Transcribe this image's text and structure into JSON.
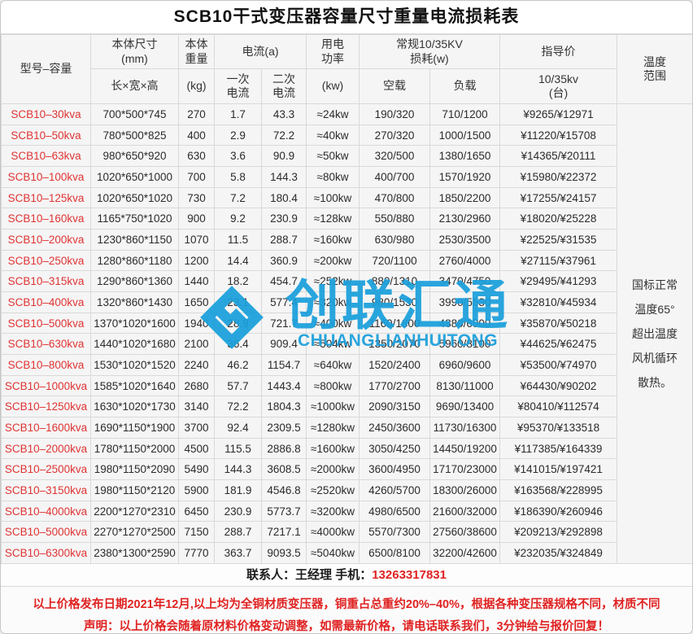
{
  "title": "SCB10干式变压器容量尺寸重量电流损耗表",
  "colors": {
    "model_red": "#e03434",
    "footer_red": "#e02222",
    "watermark_blue": "#1a9fdc",
    "cell_bg": "#f5f5f5",
    "grid_line": "#d9d9d9"
  },
  "watermark": {
    "icon": "interlocked-diamond-logo-icon",
    "cn": "创联汇通",
    "en": "CHUANGLIANHUITONG"
  },
  "table": {
    "header": {
      "model": "型号–容量",
      "dims": "本体尺寸\n(mm)",
      "dims_sub": "长×宽×高",
      "weight": "本体\n重量",
      "weight_sub": "(kg)",
      "current": "电流(a)",
      "current_primary": "一次\n电流",
      "current_secondary": "二次\n电流",
      "power": "用电\n功率",
      "power_sub": "(kw)",
      "loss": "常规10/35KV\n损耗(w)",
      "loss_noload": "空载",
      "loss_load": "负载",
      "price": "指导价",
      "price_sub": "10/35kv\n(台)",
      "temp": "温度\n范围"
    },
    "temperature_note": "国标正常\n温度65°\n超出温度\n风机循环\n散热。",
    "rows": [
      {
        "model": "SCB10–30kva",
        "dims": "700*500*745",
        "weight": "270",
        "i1": "1.7",
        "i2": "43.3",
        "power": "≈24kw",
        "noload": "190/320",
        "load": "710/1200",
        "price": "¥9265/¥12971"
      },
      {
        "model": "SCB10–50kva",
        "dims": "780*500*825",
        "weight": "400",
        "i1": "2.9",
        "i2": "72.2",
        "power": "≈40kw",
        "noload": "270/320",
        "load": "1000/1500",
        "price": "¥11220/¥15708"
      },
      {
        "model": "SCB10–63kva",
        "dims": "980*650*920",
        "weight": "630",
        "i1": "3.6",
        "i2": "90.9",
        "power": "≈50kw",
        "noload": "320/500",
        "load": "1380/1650",
        "price": "¥14365/¥20111"
      },
      {
        "model": "SCB10–100kva",
        "dims": "1020*650*1000",
        "weight": "700",
        "i1": "5.8",
        "i2": "144.3",
        "power": "≈80kw",
        "noload": "400/700",
        "load": "1570/1920",
        "price": "¥15980/¥22372"
      },
      {
        "model": "SCB10–125kva",
        "dims": "1020*650*1020",
        "weight": "730",
        "i1": "7.2",
        "i2": "180.4",
        "power": "≈100kw",
        "noload": "470/800",
        "load": "1850/2200",
        "price": "¥17255/¥24157"
      },
      {
        "model": "SCB10–160kva",
        "dims": "1165*750*1020",
        "weight": "900",
        "i1": "9.2",
        "i2": "230.9",
        "power": "≈128kw",
        "noload": "550/880",
        "load": "2130/2960",
        "price": "¥18020/¥25228"
      },
      {
        "model": "SCB10–200kva",
        "dims": "1230*860*1150",
        "weight": "1070",
        "i1": "11.5",
        "i2": "288.7",
        "power": "≈160kw",
        "noload": "630/980",
        "load": "2530/3500",
        "price": "¥22525/¥31535"
      },
      {
        "model": "SCB10–250kva",
        "dims": "1280*860*1180",
        "weight": "1200",
        "i1": "14.4",
        "i2": "360.9",
        "power": "≈200kw",
        "noload": "720/1100",
        "load": "2760/4000",
        "price": "¥27115/¥37961"
      },
      {
        "model": "SCB10–315kva",
        "dims": "1290*860*1360",
        "weight": "1440",
        "i1": "18.2",
        "i2": "454.7",
        "power": "≈252kw",
        "noload": "880/1310",
        "load": "3470/4750",
        "price": "¥29495/¥41293"
      },
      {
        "model": "SCB10–400kva",
        "dims": "1320*860*1430",
        "weight": "1650",
        "i1": "23.1",
        "i2": "577.4",
        "power": "≈320kw",
        "noload": "980/1530",
        "load": "3990/5530",
        "price": "¥32810/¥45934"
      },
      {
        "model": "SCB10–500kva",
        "dims": "1370*1020*1600",
        "weight": "1940",
        "i1": "28.9",
        "i2": "721.7",
        "power": "≈400kw",
        "noload": "1160/1800",
        "load": "4880/6900",
        "price": "¥35870/¥50218"
      },
      {
        "model": "SCB10–630kva",
        "dims": "1440*1020*1680",
        "weight": "2100",
        "i1": "36.4",
        "i2": "909.4",
        "power": "≈504kw",
        "noload": "1350/2070",
        "load": "5960/8100",
        "price": "¥44625/¥62475"
      },
      {
        "model": "SCB10–800kva",
        "dims": "1530*1020*1520",
        "weight": "2240",
        "i1": "46.2",
        "i2": "1154.7",
        "power": "≈640kw",
        "noload": "1520/2400",
        "load": "6960/9600",
        "price": "¥53500/¥74970"
      },
      {
        "model": "SCB10–1000kva",
        "dims": "1585*1020*1640",
        "weight": "2680",
        "i1": "57.7",
        "i2": "1443.4",
        "power": "≈800kw",
        "noload": "1770/2700",
        "load": "8130/11000",
        "price": "¥64430/¥90202"
      },
      {
        "model": "SCB10–1250kva",
        "dims": "1630*1020*1730",
        "weight": "3140",
        "i1": "72.2",
        "i2": "1804.3",
        "power": "≈1000kw",
        "noload": "2090/3150",
        "load": "9690/13400",
        "price": "¥80410/¥112574"
      },
      {
        "model": "SCB10–1600kva",
        "dims": "1690*1150*1900",
        "weight": "3700",
        "i1": "92.4",
        "i2": "2309.5",
        "power": "≈1280kw",
        "noload": "2450/3600",
        "load": "11730/16300",
        "price": "¥95370/¥133518"
      },
      {
        "model": "SCB10–2000kva",
        "dims": "1780*1150*2000",
        "weight": "4500",
        "i1": "115.5",
        "i2": "2886.8",
        "power": "≈1600kw",
        "noload": "3050/4250",
        "load": "14450/19200",
        "price": "¥117385/¥164339"
      },
      {
        "model": "SCB10–2500kva",
        "dims": "1980*1150*2090",
        "weight": "5490",
        "i1": "144.3",
        "i2": "3608.5",
        "power": "≈2000kw",
        "noload": "3600/4950",
        "load": "17170/23000",
        "price": "¥141015/¥197421"
      },
      {
        "model": "SCB10–3150kva",
        "dims": "1980*1150*2120",
        "weight": "5900",
        "i1": "181.9",
        "i2": "4546.8",
        "power": "≈2520kw",
        "noload": "4260/5700",
        "load": "18300/26000",
        "price": "¥163568/¥228995"
      },
      {
        "model": "SCB10–4000kva",
        "dims": "2200*1270*2310",
        "weight": "6450",
        "i1": "230.9",
        "i2": "5773.7",
        "power": "≈3200kw",
        "noload": "4980/6500",
        "load": "21600/32000",
        "price": "¥186390/¥260946"
      },
      {
        "model": "SCB10–5000kva",
        "dims": "2270*1270*2500",
        "weight": "7150",
        "i1": "288.7",
        "i2": "7217.1",
        "power": "≈4000kw",
        "noload": "5570/7300",
        "load": "27560/38600",
        "price": "¥209213/¥292898"
      },
      {
        "model": "SCB10–6300kva",
        "dims": "2380*1300*2590",
        "weight": "7770",
        "i1": "363.7",
        "i2": "9093.5",
        "power": "≈5040kw",
        "noload": "6500/8100",
        "load": "32200/42600",
        "price": "¥232035/¥324849"
      }
    ]
  },
  "contact": {
    "label": "联系人：王经理  手机：",
    "phone": "13263317831"
  },
  "footer": {
    "line1": "以上价格发布日期2021年12月,以上均为全铜材质变压器，铜重占总重约20%–40%，根据各种变压器规格不同，材质不同",
    "line2": "声明：以上价格会随着原材料价格变动调整，如需最新价格，请电话联系我们，3分钟给与报价回复！"
  }
}
